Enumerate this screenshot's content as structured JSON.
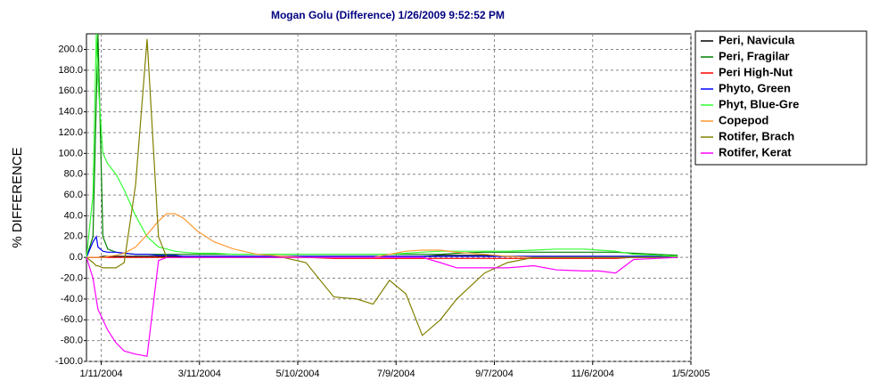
{
  "chart_data": {
    "type": "line",
    "title": "Mogan Golu (Difference)  1/26/2009 9:52:52 PM",
    "y_label": "% DIFFERENCE",
    "x": [
      "2004-01-02",
      "2004-01-06",
      "2004-01-08",
      "2004-01-09",
      "2004-01-12",
      "2004-01-15",
      "2004-01-20",
      "2004-01-25",
      "2004-02-01",
      "2004-02-08",
      "2004-02-15",
      "2004-02-20",
      "2004-02-25",
      "2004-03-01",
      "2004-03-10",
      "2004-03-20",
      "2004-04-01",
      "2004-04-15",
      "2004-05-01",
      "2004-05-15",
      "2004-06-01",
      "2004-06-15",
      "2004-06-25",
      "2004-07-05",
      "2004-07-15",
      "2004-07-25",
      "2004-08-05",
      "2004-08-15",
      "2004-09-01",
      "2004-09-15",
      "2004-10-01",
      "2004-10-15",
      "2004-11-01",
      "2004-11-10",
      "2004-11-20",
      "2004-12-01",
      "2004-12-15",
      "2004-12-28"
    ],
    "xlim": [
      "2004-01-02",
      "2005-01-05"
    ],
    "xticks": [
      {
        "value": "2004-01-11",
        "label": "1/11/2004"
      },
      {
        "value": "2004-03-11",
        "label": "3/11/2004"
      },
      {
        "value": "2004-05-10",
        "label": "5/10/2004"
      },
      {
        "value": "2004-07-09",
        "label": "7/9/2004"
      },
      {
        "value": "2004-09-07",
        "label": "9/7/2004"
      },
      {
        "value": "2004-11-06",
        "label": "11/6/2004"
      },
      {
        "value": "2005-01-05",
        "label": "1/5/2005"
      }
    ],
    "ylim": [
      -100,
      215
    ],
    "yticks": [
      {
        "value": -100,
        "label": "-100.0"
      },
      {
        "value": -80,
        "label": "-80.0"
      },
      {
        "value": -60,
        "label": "-60.0"
      },
      {
        "value": -40,
        "label": "-40.0"
      },
      {
        "value": -20,
        "label": "-20.0"
      },
      {
        "value": 0,
        "label": "0.0"
      },
      {
        "value": 20,
        "label": "20.0"
      },
      {
        "value": 40,
        "label": "40.0"
      },
      {
        "value": 60,
        "label": "60.0"
      },
      {
        "value": 80,
        "label": "80.0"
      },
      {
        "value": 100,
        "label": "100.0"
      },
      {
        "value": 120,
        "label": "120.0"
      },
      {
        "value": 140,
        "label": "140.0"
      },
      {
        "value": 160,
        "label": "160.0"
      },
      {
        "value": 180,
        "label": "180.0"
      },
      {
        "value": 200,
        "label": "200.0"
      }
    ],
    "grid": true,
    "legend": "right",
    "series": [
      {
        "name": "Peri, Navicula",
        "color": "#000000",
        "values": [
          0,
          0,
          0,
          0,
          1,
          1,
          1,
          1,
          1,
          1,
          1,
          1,
          1,
          1,
          1,
          1,
          1,
          1,
          1,
          1,
          1,
          1,
          1,
          1,
          1,
          1,
          2,
          2,
          2,
          1,
          1,
          1,
          1,
          1,
          1,
          1,
          1,
          0
        ]
      },
      {
        "name": "Peri, Fragilar",
        "color": "#008000",
        "values": [
          0,
          20,
          150,
          215,
          20,
          8,
          5,
          4,
          3,
          3,
          3,
          3,
          3,
          3,
          3,
          3,
          3,
          3,
          3,
          3,
          3,
          3,
          3,
          3,
          3,
          3,
          3,
          4,
          5,
          5,
          5,
          5,
          5,
          5,
          5,
          4,
          3,
          2
        ]
      },
      {
        "name": "Peri High-Nut",
        "color": "#ff0000",
        "values": [
          0,
          0,
          0,
          0,
          0,
          0,
          0,
          0,
          0,
          0,
          0,
          0,
          0,
          0,
          0,
          0,
          0,
          0,
          0,
          0,
          -1,
          -1,
          -1,
          -1,
          -1,
          -1,
          -1,
          -1,
          -1,
          -1,
          -1,
          -1,
          -1,
          -1,
          -1,
          0,
          0,
          0
        ]
      },
      {
        "name": "Phyto, Green",
        "color": "#0000ff",
        "values": [
          0,
          15,
          20,
          10,
          6,
          5,
          5,
          4,
          3,
          3,
          2,
          2,
          2,
          1,
          1,
          1,
          1,
          1,
          1,
          1,
          1,
          1,
          1,
          1,
          1,
          1,
          1,
          1,
          1,
          1,
          1,
          1,
          1,
          1,
          1,
          1,
          1,
          0
        ]
      },
      {
        "name": "Phyt, Blue-Gre",
        "color": "#33ff33",
        "values": [
          0,
          60,
          215,
          170,
          100,
          90,
          80,
          65,
          40,
          20,
          10,
          8,
          6,
          5,
          4,
          4,
          3,
          3,
          3,
          3,
          3,
          3,
          3,
          3,
          4,
          5,
          6,
          6,
          6,
          6,
          7,
          8,
          8,
          7,
          6,
          3,
          2,
          1
        ]
      },
      {
        "name": "Copepod",
        "color": "#ff9933",
        "values": [
          0,
          0,
          0,
          0,
          0,
          1,
          2,
          4,
          10,
          22,
          35,
          42,
          42,
          38,
          25,
          15,
          8,
          3,
          1,
          0,
          0,
          0,
          0,
          3,
          6,
          7,
          7,
          5,
          3,
          1,
          0,
          0,
          0,
          0,
          0,
          0,
          0,
          0
        ]
      },
      {
        "name": "Rotifer, Brach",
        "color": "#808000",
        "values": [
          0,
          -5,
          -8,
          -8,
          -10,
          -10,
          -10,
          -5,
          70,
          210,
          20,
          0,
          0,
          0,
          0,
          0,
          0,
          0,
          0,
          -5,
          -38,
          -40,
          -45,
          -22,
          -35,
          -75,
          -60,
          -40,
          -15,
          -5,
          0,
          0,
          0,
          0,
          0,
          0,
          0,
          0
        ]
      },
      {
        "name": "Rotifer, Kerat",
        "color": "#ff00ff",
        "values": [
          0,
          -20,
          -40,
          -50,
          -60,
          -70,
          -82,
          -90,
          -93,
          -95,
          -3,
          0,
          0,
          0,
          0,
          0,
          0,
          0,
          0,
          0,
          0,
          0,
          0,
          0,
          0,
          0,
          -5,
          -10,
          -10,
          -10,
          -8,
          -12,
          -13,
          -13,
          -15,
          -2,
          -1,
          0
        ]
      }
    ]
  }
}
